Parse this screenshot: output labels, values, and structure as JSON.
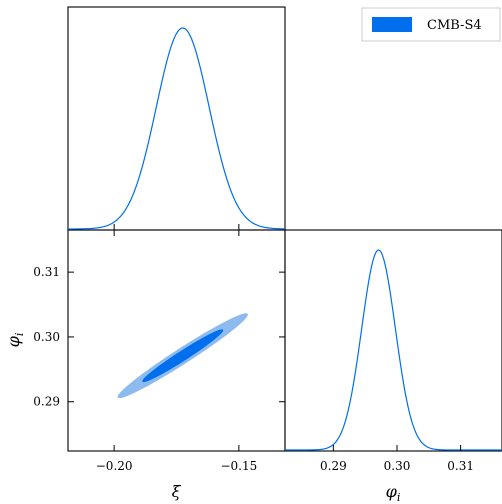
{
  "colors": {
    "inner": "#006FED",
    "outer": "#8DBBF0",
    "line": "#006FED",
    "axis": "#000000"
  },
  "chart_data": {
    "type": "triangle",
    "legend": {
      "label": "CMB-S4",
      "placement": "top-right"
    },
    "parameters": [
      {
        "name": "xi",
        "label": "ξ",
        "range": [
          -0.2185,
          -0.1315
        ],
        "ticks": [
          -0.2,
          -0.15
        ],
        "tick_labels": [
          "−0.20",
          "−0.15"
        ]
      },
      {
        "name": "phi_i",
        "label": "φi",
        "range": [
          0.2824,
          0.3165
        ],
        "ticks": [
          0.29,
          0.3,
          0.31
        ],
        "tick_labels": [
          "0.29",
          "0.30",
          "0.31"
        ]
      }
    ],
    "marginals": [
      {
        "parameter": "xi",
        "type": "line",
        "mean": -0.1725,
        "sigma": 0.0106
      },
      {
        "parameter": "phi_i",
        "type": "line",
        "mean": 0.2971,
        "sigma": 0.00265
      }
    ],
    "joint": {
      "type": "contour",
      "x": "xi",
      "y": "phi_i",
      "mean": [
        -0.1725,
        0.2971
      ],
      "sigma": [
        0.0106,
        0.00265
      ],
      "rho": 0.977,
      "levels": [
        {
          "name": "68%",
          "k": 1.515,
          "fill": "inner"
        },
        {
          "name": "95%",
          "k": 2.448,
          "fill": "outer"
        }
      ]
    }
  }
}
